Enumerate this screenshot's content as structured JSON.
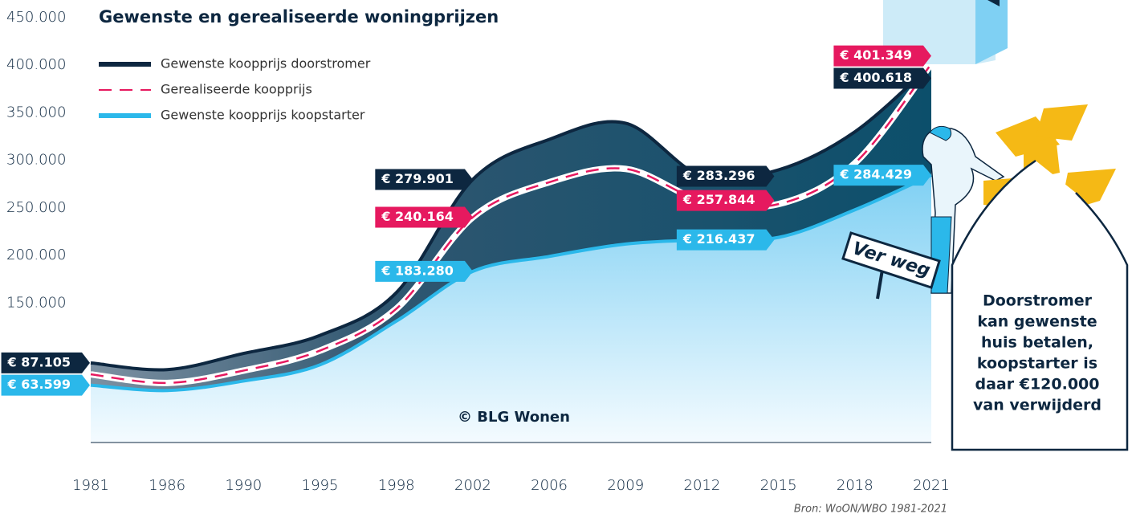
{
  "chart_data": {
    "type": "line",
    "title": "Gewenste en gerealiseerde woningprijzen",
    "categories": [
      "1981",
      "1986",
      "1990",
      "1995",
      "1998",
      "2002",
      "2006",
      "2009",
      "2012",
      "2015",
      "2018",
      "2021"
    ],
    "ylim": [
      0,
      450000
    ],
    "yticks": [
      {
        "value": 150000,
        "label": "150.000"
      },
      {
        "value": 200000,
        "label": "200.000"
      },
      {
        "value": 250000,
        "label": "250.000"
      },
      {
        "value": 300000,
        "label": "300.000"
      },
      {
        "value": 350000,
        "label": "350.000"
      },
      {
        "value": 400000,
        "label": "400.000"
      },
      {
        "value": 450000,
        "label": "450.000"
      }
    ],
    "grid": false,
    "legend": "top-left",
    "series": [
      {
        "name": "Gewenste koopprijs doorstromer",
        "color": "#0d2740",
        "values": [
          87105,
          80000,
          97000,
          116000,
          161000,
          279901,
          322000,
          339000,
          283296,
          290000,
          330000,
          400618
        ],
        "value_labels": [
          "€ 87.105",
          null,
          null,
          null,
          null,
          "€ 279.901",
          null,
          null,
          "€ 283.296",
          null,
          null,
          "€ 400.618"
        ]
      },
      {
        "name": "Gerealiseerde koopprijs",
        "color": "#e6195f",
        "values": [
          75000,
          66000,
          79000,
          100000,
          144000,
          240164,
          277000,
          291000,
          257844,
          254000,
          297000,
          401349
        ],
        "value_labels": [
          null,
          null,
          null,
          null,
          null,
          "€ 240.164",
          null,
          null,
          "€ 257.844",
          null,
          null,
          "€ 401.349"
        ]
      },
      {
        "name": "Gewenste koopprijs koopstarter",
        "color": "#2bb8ea",
        "values": [
          63599,
          58000,
          68000,
          85000,
          131000,
          183280,
          199000,
          212000,
          216437,
          219000,
          248000,
          284429
        ],
        "value_labels": [
          "€ 63.599",
          null,
          null,
          null,
          null,
          "€ 183.280",
          null,
          null,
          "€ 216.437",
          null,
          null,
          "€ 284.429"
        ]
      }
    ],
    "annotations": {
      "copyright": "© BLG Wonen",
      "source": "Bron: WoON/WBO 1981-2021",
      "sign": "Ver weg",
      "callout": [
        "Doorstromer",
        "kan gewenste",
        "huis betalen,",
        "koopstarter is",
        "daar €120.000",
        "van verwijderd"
      ]
    }
  }
}
